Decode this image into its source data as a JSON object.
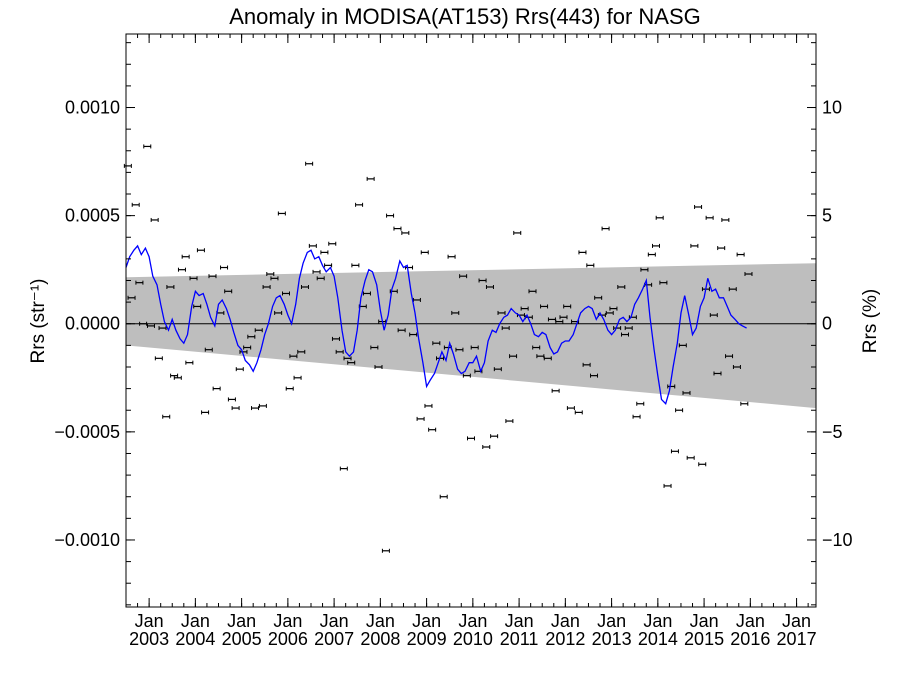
{
  "chart_data": {
    "type": "scatter",
    "title": "Anomaly in MODISA(AT153) Rrs(443) for NASG",
    "ylabel_left": "Rrs (str⁻¹)",
    "ylabel_right": "Rrs (%)",
    "xlabel": "",
    "xlim": [
      2002.5,
      2017.42
    ],
    "ylim_left": [
      -0.00131,
      0.00134
    ],
    "ylim_right": [
      -13.1,
      13.4
    ],
    "left_ticks": [
      {
        "v": 0.001,
        "label": "0.0010"
      },
      {
        "v": 0.0005,
        "label": "0.0005"
      },
      {
        "v": 0.0,
        "label": "0.0000"
      },
      {
        "v": -0.0005,
        "label": "−0.0005"
      },
      {
        "v": -0.001,
        "label": "−0.0010"
      }
    ],
    "right_ticks": [
      {
        "v": 10,
        "label": "10"
      },
      {
        "v": 5,
        "label": "5"
      },
      {
        "v": 0,
        "label": "0"
      },
      {
        "v": -5,
        "label": "−5"
      },
      {
        "v": -10,
        "label": "−10"
      }
    ],
    "x_ticks": [
      {
        "v": 2003,
        "month": "Jan",
        "year": "2003"
      },
      {
        "v": 2004,
        "month": "Jan",
        "year": "2004"
      },
      {
        "v": 2005,
        "month": "Jan",
        "year": "2005"
      },
      {
        "v": 2006,
        "month": "Jan",
        "year": "2006"
      },
      {
        "v": 2007,
        "month": "Jan",
        "year": "2007"
      },
      {
        "v": 2008,
        "month": "Jan",
        "year": "2008"
      },
      {
        "v": 2009,
        "month": "Jan",
        "year": "2009"
      },
      {
        "v": 2010,
        "month": "Jan",
        "year": "2010"
      },
      {
        "v": 2011,
        "month": "Jan",
        "year": "2011"
      },
      {
        "v": 2012,
        "month": "Jan",
        "year": "2012"
      },
      {
        "v": 2013,
        "month": "Jan",
        "year": "2013"
      },
      {
        "v": 2014,
        "month": "Jan",
        "year": "2014"
      },
      {
        "v": 2015,
        "month": "Jan",
        "year": "2015"
      },
      {
        "v": 2016,
        "month": "Jan",
        "year": "2016"
      },
      {
        "v": 2017,
        "month": "Jan",
        "year": "2017"
      }
    ],
    "band": {
      "x": [
        2002.5,
        2017.42
      ],
      "upper": [
        0.000215,
        0.00028
      ],
      "lower": [
        -0.0001,
        -0.00039
      ],
      "color": "#bebebe"
    },
    "zero_line": 0.0,
    "colors": {
      "points": "#000000",
      "running_mean": "#0000ff",
      "band": "#bebebe"
    },
    "points": [
      [
        2002.54,
        0.00073
      ],
      [
        2002.62,
        0.00012
      ],
      [
        2002.71,
        0.00055
      ],
      [
        2002.79,
        0.00019
      ],
      [
        2002.87,
        0.0
      ],
      [
        2002.96,
        0.00082
      ],
      [
        2003.04,
        -1e-05
      ],
      [
        2003.12,
        0.00048
      ],
      [
        2003.21,
        -0.00016
      ],
      [
        2003.29,
        -2e-05
      ],
      [
        2003.37,
        -0.00043
      ],
      [
        2003.46,
        0.00017
      ],
      [
        2003.54,
        -0.00024
      ],
      [
        2003.62,
        -0.00025
      ],
      [
        2003.71,
        0.00025
      ],
      [
        2003.79,
        0.00031
      ],
      [
        2003.87,
        -0.00018
      ],
      [
        2003.96,
        0.00021
      ],
      [
        2004.04,
        8e-05
      ],
      [
        2004.12,
        0.00034
      ],
      [
        2004.21,
        -0.00041
      ],
      [
        2004.29,
        -0.00012
      ],
      [
        2004.37,
        0.00022
      ],
      [
        2004.46,
        -0.0003
      ],
      [
        2004.54,
        5e-05
      ],
      [
        2004.62,
        0.00026
      ],
      [
        2004.71,
        0.00015
      ],
      [
        2004.79,
        -0.00035
      ],
      [
        2004.87,
        -0.00039
      ],
      [
        2004.96,
        -0.00021
      ],
      [
        2005.04,
        -0.00013
      ],
      [
        2005.12,
        -0.00011
      ],
      [
        2005.21,
        -6e-05
      ],
      [
        2005.29,
        -0.00039
      ],
      [
        2005.37,
        -3e-05
      ],
      [
        2005.46,
        -0.00038
      ],
      [
        2005.54,
        0.00017
      ],
      [
        2005.62,
        0.00023
      ],
      [
        2005.71,
        0.00021
      ],
      [
        2005.79,
        5e-05
      ],
      [
        2005.87,
        0.00051
      ],
      [
        2005.96,
        0.00014
      ],
      [
        2006.04,
        -0.0003
      ],
      [
        2006.12,
        -0.00015
      ],
      [
        2006.21,
        -0.00025
      ],
      [
        2006.29,
        -0.00013
      ],
      [
        2006.37,
        0.00017
      ],
      [
        2006.46,
        0.00074
      ],
      [
        2006.54,
        0.00036
      ],
      [
        2006.62,
        0.00024
      ],
      [
        2006.71,
        0.00021
      ],
      [
        2006.79,
        0.00033
      ],
      [
        2006.87,
        0.00027
      ],
      [
        2006.96,
        0.00037
      ],
      [
        2007.04,
        -7e-05
      ],
      [
        2007.12,
        -0.00013
      ],
      [
        2007.21,
        -0.00067
      ],
      [
        2007.29,
        -0.00016
      ],
      [
        2007.37,
        -0.00018
      ],
      [
        2007.46,
        0.00027
      ],
      [
        2007.54,
        0.00055
      ],
      [
        2007.62,
        8e-05
      ],
      [
        2007.71,
        0.00014
      ],
      [
        2007.79,
        0.00067
      ],
      [
        2007.87,
        -0.00011
      ],
      [
        2007.96,
        -0.0002
      ],
      [
        2008.04,
        1e-05
      ],
      [
        2008.12,
        -0.00105
      ],
      [
        2008.21,
        0.0005
      ],
      [
        2008.29,
        0.00015
      ],
      [
        2008.37,
        0.00044
      ],
      [
        2008.46,
        -3e-05
      ],
      [
        2008.54,
        0.00042
      ],
      [
        2008.62,
        0.00026
      ],
      [
        2008.71,
        -5e-05
      ],
      [
        2008.79,
        0.00011
      ],
      [
        2008.87,
        -0.00044
      ],
      [
        2008.96,
        0.00033
      ],
      [
        2009.04,
        -0.00038
      ],
      [
        2009.12,
        -0.00049
      ],
      [
        2009.21,
        -9e-05
      ],
      [
        2009.29,
        -0.00016
      ],
      [
        2009.37,
        -0.0008
      ],
      [
        2009.46,
        -0.00011
      ],
      [
        2009.54,
        0.00031
      ],
      [
        2009.62,
        5e-05
      ],
      [
        2009.71,
        -0.00012
      ],
      [
        2009.79,
        0.00022
      ],
      [
        2009.87,
        -0.00024
      ],
      [
        2009.96,
        -0.00053
      ],
      [
        2010.04,
        -0.00011
      ],
      [
        2010.12,
        -0.00022
      ],
      [
        2010.21,
        0.0002
      ],
      [
        2010.29,
        -0.00057
      ],
      [
        2010.37,
        0.00017
      ],
      [
        2010.46,
        -0.00052
      ],
      [
        2010.54,
        -0.00021
      ],
      [
        2010.62,
        5e-05
      ],
      [
        2010.71,
        -2e-05
      ],
      [
        2010.79,
        -0.00045
      ],
      [
        2010.87,
        -0.00015
      ],
      [
        2010.96,
        0.00042
      ],
      [
        2011.04,
        4e-05
      ],
      [
        2011.12,
        7e-05
      ],
      [
        2011.21,
        3e-05
      ],
      [
        2011.29,
        0.00015
      ],
      [
        2011.37,
        -0.00011
      ],
      [
        2011.46,
        -0.00015
      ],
      [
        2011.54,
        8e-05
      ],
      [
        2011.62,
        -0.00016
      ],
      [
        2011.71,
        2e-05
      ],
      [
        2011.79,
        -0.00031
      ],
      [
        2011.87,
        1e-05
      ],
      [
        2011.96,
        3e-05
      ],
      [
        2012.04,
        8e-05
      ],
      [
        2012.12,
        -0.00039
      ],
      [
        2012.21,
        1e-05
      ],
      [
        2012.29,
        -0.00041
      ],
      [
        2012.37,
        0.00033
      ],
      [
        2012.46,
        -0.00019
      ],
      [
        2012.54,
        0.00027
      ],
      [
        2012.62,
        -0.00024
      ],
      [
        2012.71,
        0.00012
      ],
      [
        2012.79,
        4e-05
      ],
      [
        2012.87,
        0.00044
      ],
      [
        2012.96,
        5e-05
      ],
      [
        2013.04,
        7e-05
      ],
      [
        2013.12,
        -2e-05
      ],
      [
        2013.21,
        0.00017
      ],
      [
        2013.29,
        -5e-05
      ],
      [
        2013.37,
        -2e-05
      ],
      [
        2013.46,
        3e-05
      ],
      [
        2013.54,
        -0.00043
      ],
      [
        2013.62,
        -0.00037
      ],
      [
        2013.71,
        0.00025
      ],
      [
        2013.79,
        0.00018
      ],
      [
        2013.87,
        0.00032
      ],
      [
        2013.96,
        0.00036
      ],
      [
        2014.04,
        0.00049
      ],
      [
        2014.12,
        0.00019
      ],
      [
        2014.21,
        -0.00075
      ],
      [
        2014.29,
        -0.00029
      ],
      [
        2014.37,
        -0.00059
      ],
      [
        2014.46,
        -0.0004
      ],
      [
        2014.54,
        -0.0001
      ],
      [
        2014.62,
        -0.00032
      ],
      [
        2014.71,
        -0.00062
      ],
      [
        2014.79,
        0.00036
      ],
      [
        2014.87,
        0.00054
      ],
      [
        2014.96,
        -0.00065
      ],
      [
        2015.04,
        0.00016
      ],
      [
        2015.12,
        0.00049
      ],
      [
        2015.21,
        4e-05
      ],
      [
        2015.29,
        -0.00023
      ],
      [
        2015.37,
        0.00035
      ],
      [
        2015.46,
        0.00048
      ],
      [
        2015.54,
        -0.00015
      ],
      [
        2015.62,
        0.00016
      ],
      [
        2015.71,
        -0.0002
      ],
      [
        2015.79,
        0.00032
      ],
      [
        2015.87,
        -0.00037
      ],
      [
        2015.96,
        0.00023
      ]
    ],
    "running_mean": [
      [
        2002.5,
        0.00026
      ],
      [
        2002.58,
        0.00031
      ],
      [
        2002.67,
        0.00034
      ],
      [
        2002.75,
        0.00036
      ],
      [
        2002.83,
        0.00032
      ],
      [
        2002.92,
        0.00035
      ],
      [
        2003.0,
        0.00031
      ],
      [
        2003.08,
        0.00022
      ],
      [
        2003.17,
        0.00018
      ],
      [
        2003.25,
        9e-05
      ],
      [
        2003.33,
        1e-05
      ],
      [
        2003.42,
        -3e-05
      ],
      [
        2003.5,
        2e-05
      ],
      [
        2003.58,
        -3e-05
      ],
      [
        2003.67,
        -7e-05
      ],
      [
        2003.75,
        -9e-05
      ],
      [
        2003.83,
        -5e-05
      ],
      [
        2003.92,
        8e-05
      ],
      [
        2004.0,
        0.00015
      ],
      [
        2004.08,
        0.00013
      ],
      [
        2004.17,
        0.00014
      ],
      [
        2004.25,
        9e-05
      ],
      [
        2004.33,
        3e-05
      ],
      [
        2004.42,
        -1e-05
      ],
      [
        2004.5,
        9e-05
      ],
      [
        2004.58,
        0.00011
      ],
      [
        2004.67,
        7e-05
      ],
      [
        2004.75,
        2e-05
      ],
      [
        2004.83,
        -4e-05
      ],
      [
        2004.92,
        -0.0001
      ],
      [
        2005.0,
        -0.00012
      ],
      [
        2005.08,
        -0.00017
      ],
      [
        2005.17,
        -0.00019
      ],
      [
        2005.25,
        -0.00022
      ],
      [
        2005.33,
        -0.00018
      ],
      [
        2005.42,
        -0.00012
      ],
      [
        2005.5,
        -5e-05
      ],
      [
        2005.58,
        0.0
      ],
      [
        2005.67,
        8e-05
      ],
      [
        2005.75,
        0.00012
      ],
      [
        2005.83,
        0.00013
      ],
      [
        2005.92,
        9e-05
      ],
      [
        2006.0,
        4e-05
      ],
      [
        2006.08,
        0.0
      ],
      [
        2006.17,
        9e-05
      ],
      [
        2006.25,
        0.00021
      ],
      [
        2006.33,
        0.00028
      ],
      [
        2006.42,
        0.00033
      ],
      [
        2006.5,
        0.00034
      ],
      [
        2006.58,
        0.0003
      ],
      [
        2006.67,
        0.00031
      ],
      [
        2006.75,
        0.00027
      ],
      [
        2006.83,
        0.00024
      ],
      [
        2006.92,
        0.00026
      ],
      [
        2007.0,
        0.00022
      ],
      [
        2007.08,
        0.00012
      ],
      [
        2007.17,
        -3e-05
      ],
      [
        2007.25,
        -0.00013
      ],
      [
        2007.33,
        -0.00015
      ],
      [
        2007.42,
        -0.00013
      ],
      [
        2007.5,
        -3e-05
      ],
      [
        2007.58,
        0.00012
      ],
      [
        2007.67,
        0.0002
      ],
      [
        2007.75,
        0.00025
      ],
      [
        2007.83,
        0.00024
      ],
      [
        2007.92,
        0.00018
      ],
      [
        2008.0,
        6e-05
      ],
      [
        2008.08,
        -3e-05
      ],
      [
        2008.17,
        4e-05
      ],
      [
        2008.25,
        0.00016
      ],
      [
        2008.33,
        0.00021
      ],
      [
        2008.42,
        0.00029
      ],
      [
        2008.5,
        0.00026
      ],
      [
        2008.58,
        0.00027
      ],
      [
        2008.67,
        0.00014
      ],
      [
        2008.75,
        5e-05
      ],
      [
        2008.83,
        -7e-05
      ],
      [
        2008.92,
        -0.00018
      ],
      [
        2009.0,
        -0.00029
      ],
      [
        2009.08,
        -0.00026
      ],
      [
        2009.17,
        -0.00023
      ],
      [
        2009.25,
        -0.00018
      ],
      [
        2009.33,
        -0.00013
      ],
      [
        2009.42,
        -0.00017
      ],
      [
        2009.5,
        -9e-05
      ],
      [
        2009.58,
        -0.00014
      ],
      [
        2009.67,
        -0.00021
      ],
      [
        2009.75,
        -0.00023
      ],
      [
        2009.83,
        -0.00022
      ],
      [
        2009.92,
        -0.00018
      ],
      [
        2010.0,
        -0.00018
      ],
      [
        2010.08,
        -0.00015
      ],
      [
        2010.17,
        -0.00022
      ],
      [
        2010.25,
        -0.00018
      ],
      [
        2010.33,
        -8e-05
      ],
      [
        2010.42,
        -3e-05
      ],
      [
        2010.5,
        -4e-05
      ],
      [
        2010.58,
        0.0
      ],
      [
        2010.67,
        3e-05
      ],
      [
        2010.75,
        4e-05
      ],
      [
        2010.83,
        7e-05
      ],
      [
        2010.92,
        5e-05
      ],
      [
        2011.0,
        4e-05
      ],
      [
        2011.08,
        1e-05
      ],
      [
        2011.17,
        4e-05
      ],
      [
        2011.25,
        0.0
      ],
      [
        2011.33,
        -5e-05
      ],
      [
        2011.42,
        -6e-05
      ],
      [
        2011.5,
        -4e-05
      ],
      [
        2011.58,
        -5e-05
      ],
      [
        2011.67,
        -0.00011
      ],
      [
        2011.75,
        -0.00014
      ],
      [
        2011.83,
        -0.00013
      ],
      [
        2011.92,
        -9e-05
      ],
      [
        2012.0,
        -8e-05
      ],
      [
        2012.08,
        -8e-05
      ],
      [
        2012.17,
        -5e-05
      ],
      [
        2012.25,
        0.0
      ],
      [
        2012.33,
        5e-05
      ],
      [
        2012.42,
        7e-05
      ],
      [
        2012.5,
        8e-05
      ],
      [
        2012.58,
        7e-05
      ],
      [
        2012.67,
        2e-05
      ],
      [
        2012.75,
        5e-05
      ],
      [
        2012.83,
        2e-05
      ],
      [
        2012.92,
        -3e-05
      ],
      [
        2013.0,
        -5e-05
      ],
      [
        2013.08,
        -3e-05
      ],
      [
        2013.17,
        2e-05
      ],
      [
        2013.25,
        3e-05
      ],
      [
        2013.33,
        1e-05
      ],
      [
        2013.42,
        3e-05
      ],
      [
        2013.5,
        9e-05
      ],
      [
        2013.58,
        0.00012
      ],
      [
        2013.67,
        0.00016
      ],
      [
        2013.75,
        0.0002
      ],
      [
        2013.83,
        3e-05
      ],
      [
        2013.92,
        -0.00012
      ],
      [
        2014.0,
        -0.00024
      ],
      [
        2014.08,
        -0.00035
      ],
      [
        2014.17,
        -0.00037
      ],
      [
        2014.25,
        -0.00031
      ],
      [
        2014.33,
        -0.0002
      ],
      [
        2014.42,
        -9e-05
      ],
      [
        2014.5,
        5e-05
      ],
      [
        2014.58,
        0.00013
      ],
      [
        2014.67,
        4e-05
      ],
      [
        2014.75,
        -5e-05
      ],
      [
        2014.83,
        -2e-05
      ],
      [
        2014.92,
        8e-05
      ],
      [
        2015.0,
        0.00012
      ],
      [
        2015.08,
        0.00021
      ],
      [
        2015.17,
        0.00015
      ],
      [
        2015.25,
        0.00016
      ],
      [
        2015.33,
        0.00012
      ],
      [
        2015.42,
        0.00012
      ],
      [
        2015.5,
        8e-05
      ],
      [
        2015.58,
        4e-05
      ],
      [
        2015.67,
        2e-05
      ],
      [
        2015.75,
        0.0
      ],
      [
        2015.83,
        -1e-05
      ],
      [
        2015.92,
        -2e-05
      ]
    ]
  }
}
